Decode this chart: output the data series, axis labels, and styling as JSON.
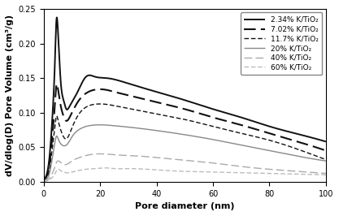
{
  "title": "",
  "xlabel": "Pore diameter (nm)",
  "ylabel": "dV/dlog(D) Pore Volume (cm³/g)",
  "xlim": [
    0,
    100
  ],
  "ylim": [
    0,
    0.25
  ],
  "yticks": [
    0.0,
    0.05,
    0.1,
    0.15,
    0.2,
    0.25
  ],
  "xticks": [
    0,
    20,
    40,
    60,
    80,
    100
  ],
  "series": [
    {
      "label": "2.34% K/TiO₂",
      "color": "#111111",
      "linestyle_key": "solid",
      "linewidth": 1.4,
      "points": [
        [
          0,
          0.002
        ],
        [
          1,
          0.01
        ],
        [
          2,
          0.035
        ],
        [
          3,
          0.09
        ],
        [
          4,
          0.18
        ],
        [
          4.5,
          0.235
        ],
        [
          5,
          0.22
        ],
        [
          6,
          0.145
        ],
        [
          7,
          0.118
        ],
        [
          8,
          0.105
        ],
        [
          9,
          0.108
        ],
        [
          10,
          0.115
        ],
        [
          12,
          0.13
        ],
        [
          15,
          0.152
        ],
        [
          18,
          0.152
        ],
        [
          22,
          0.15
        ],
        [
          25,
          0.148
        ],
        [
          30,
          0.142
        ],
        [
          40,
          0.13
        ],
        [
          50,
          0.118
        ],
        [
          60,
          0.105
        ],
        [
          70,
          0.093
        ],
        [
          80,
          0.08
        ],
        [
          90,
          0.069
        ],
        [
          100,
          0.058
        ]
      ]
    },
    {
      "label": "7.02% K/TiO₂",
      "color": "#111111",
      "linestyle_key": "longdash",
      "linewidth": 1.5,
      "points": [
        [
          0,
          0.002
        ],
        [
          1,
          0.008
        ],
        [
          2,
          0.025
        ],
        [
          3,
          0.065
        ],
        [
          4,
          0.115
        ],
        [
          4.5,
          0.14
        ],
        [
          5,
          0.135
        ],
        [
          6,
          0.11
        ],
        [
          7,
          0.095
        ],
        [
          8,
          0.088
        ],
        [
          9,
          0.092
        ],
        [
          10,
          0.1
        ],
        [
          12,
          0.115
        ],
        [
          15,
          0.128
        ],
        [
          18,
          0.133
        ],
        [
          22,
          0.133
        ],
        [
          25,
          0.13
        ],
        [
          30,
          0.125
        ],
        [
          40,
          0.115
        ],
        [
          50,
          0.105
        ],
        [
          60,
          0.093
        ],
        [
          70,
          0.082
        ],
        [
          80,
          0.07
        ],
        [
          90,
          0.058
        ],
        [
          100,
          0.045
        ]
      ]
    },
    {
      "label": "11.7% K/TiO₂",
      "color": "#111111",
      "linestyle_key": "mediumdash",
      "linewidth": 1.0,
      "points": [
        [
          0,
          0.001
        ],
        [
          1,
          0.005
        ],
        [
          2,
          0.018
        ],
        [
          3,
          0.048
        ],
        [
          4,
          0.082
        ],
        [
          4.5,
          0.095
        ],
        [
          5,
          0.09
        ],
        [
          6,
          0.075
        ],
        [
          7,
          0.065
        ],
        [
          8,
          0.062
        ],
        [
          9,
          0.068
        ],
        [
          10,
          0.078
        ],
        [
          12,
          0.095
        ],
        [
          15,
          0.108
        ],
        [
          18,
          0.112
        ],
        [
          22,
          0.112
        ],
        [
          25,
          0.11
        ],
        [
          30,
          0.106
        ],
        [
          40,
          0.098
        ],
        [
          50,
          0.09
        ],
        [
          60,
          0.08
        ],
        [
          70,
          0.07
        ],
        [
          80,
          0.06
        ],
        [
          90,
          0.047
        ],
        [
          100,
          0.032
        ]
      ]
    },
    {
      "label": "20% K/TiO₂",
      "color": "#888888",
      "linestyle_key": "solid",
      "linewidth": 1.0,
      "points": [
        [
          0,
          0.001
        ],
        [
          1,
          0.004
        ],
        [
          2,
          0.012
        ],
        [
          3,
          0.033
        ],
        [
          4,
          0.058
        ],
        [
          4.5,
          0.066
        ],
        [
          5,
          0.063
        ],
        [
          6,
          0.055
        ],
        [
          7,
          0.052
        ],
        [
          8,
          0.053
        ],
        [
          9,
          0.058
        ],
        [
          10,
          0.065
        ],
        [
          12,
          0.074
        ],
        [
          15,
          0.08
        ],
        [
          18,
          0.082
        ],
        [
          22,
          0.082
        ],
        [
          25,
          0.081
        ],
        [
          30,
          0.079
        ],
        [
          40,
          0.074
        ],
        [
          50,
          0.068
        ],
        [
          60,
          0.061
        ],
        [
          70,
          0.053
        ],
        [
          80,
          0.045
        ],
        [
          90,
          0.037
        ],
        [
          100,
          0.03
        ]
      ]
    },
    {
      "label": "40% K/TiO₂",
      "color": "#aaaaaa",
      "linestyle_key": "longdash",
      "linewidth": 1.0,
      "points": [
        [
          0,
          0.001
        ],
        [
          1,
          0.002
        ],
        [
          2,
          0.005
        ],
        [
          3,
          0.012
        ],
        [
          4,
          0.022
        ],
        [
          4.5,
          0.028
        ],
        [
          5,
          0.03
        ],
        [
          6,
          0.028
        ],
        [
          7,
          0.025
        ],
        [
          8,
          0.025
        ],
        [
          9,
          0.027
        ],
        [
          10,
          0.03
        ],
        [
          12,
          0.034
        ],
        [
          15,
          0.038
        ],
        [
          18,
          0.04
        ],
        [
          22,
          0.04
        ],
        [
          25,
          0.039
        ],
        [
          30,
          0.038
        ],
        [
          40,
          0.035
        ],
        [
          50,
          0.031
        ],
        [
          60,
          0.027
        ],
        [
          70,
          0.022
        ],
        [
          80,
          0.018
        ],
        [
          90,
          0.015
        ],
        [
          100,
          0.012
        ]
      ]
    },
    {
      "label": "60% K/TiO₂",
      "color": "#bbbbbb",
      "linestyle_key": "mediumdash",
      "linewidth": 1.0,
      "points": [
        [
          0,
          0.0
        ],
        [
          1,
          0.001
        ],
        [
          2,
          0.003
        ],
        [
          3,
          0.006
        ],
        [
          4,
          0.012
        ],
        [
          4.5,
          0.016
        ],
        [
          5,
          0.018
        ],
        [
          6,
          0.016
        ],
        [
          7,
          0.014
        ],
        [
          8,
          0.013
        ],
        [
          9,
          0.013
        ],
        [
          10,
          0.014
        ],
        [
          12,
          0.016
        ],
        [
          15,
          0.018
        ],
        [
          18,
          0.019
        ],
        [
          22,
          0.02
        ],
        [
          25,
          0.019
        ],
        [
          30,
          0.019
        ],
        [
          40,
          0.017
        ],
        [
          50,
          0.015
        ],
        [
          60,
          0.014
        ],
        [
          70,
          0.013
        ],
        [
          80,
          0.012
        ],
        [
          90,
          0.011
        ],
        [
          100,
          0.01
        ]
      ]
    }
  ],
  "background_color": "#ffffff",
  "legend_fontsize": 6.5,
  "axis_fontsize": 8,
  "tick_fontsize": 7
}
